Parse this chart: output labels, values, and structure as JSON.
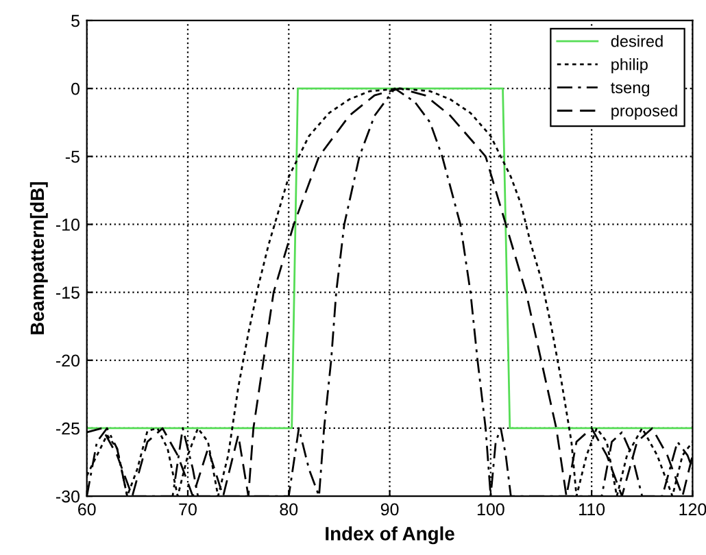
{
  "chart_data": {
    "type": "line",
    "xlabel": "Index of Angle",
    "ylabel": "Beampattern[dB]",
    "xlim": [
      60,
      120
    ],
    "ylim": [
      -30,
      5
    ],
    "xticks": [
      60,
      70,
      80,
      90,
      100,
      110,
      120
    ],
    "yticks": [
      -30,
      -25,
      -20,
      -15,
      -10,
      -5,
      0,
      5
    ],
    "grid": true,
    "legend": "top right",
    "marker": "none",
    "series": [
      {
        "name": "desired",
        "color": "#55dd55",
        "line_style": "solid",
        "x": [
          60,
          80.3,
          80.9,
          101.2,
          101.9,
          120
        ],
        "values": [
          -25,
          -25,
          0,
          0,
          -25,
          -25
        ]
      },
      {
        "name": "philip",
        "color": "#000000",
        "line_style": "dotted",
        "x": [
          60,
          61,
          62,
          63,
          64,
          65,
          66,
          67,
          68,
          69,
          70,
          71,
          72,
          73,
          74,
          75,
          76,
          77,
          78,
          79,
          80,
          82,
          84,
          86,
          88,
          91,
          94,
          96,
          98,
          100,
          102,
          103,
          104,
          105,
          106,
          107,
          108,
          108.5,
          109.5,
          110.5,
          111.5,
          112.5,
          113.5,
          115,
          116.5,
          118,
          119,
          120
        ],
        "values": [
          -28.5,
          -27,
          -25.5,
          -26.5,
          -30,
          -28,
          -25.2,
          -25,
          -26.5,
          -30,
          -27,
          -25,
          -26,
          -30,
          -27,
          -22,
          -18,
          -14.5,
          -11.5,
          -9,
          -6.5,
          -3.5,
          -1.8,
          -0.8,
          -0.2,
          0,
          -0.2,
          -0.8,
          -1.8,
          -3.5,
          -6.5,
          -8.5,
          -11.5,
          -14,
          -17.5,
          -21.5,
          -26,
          -30,
          -27,
          -25,
          -26,
          -30,
          -27,
          -25,
          -27,
          -30,
          -27,
          -26
        ]
      },
      {
        "name": "tseng",
        "color": "#000000",
        "line_style": "dashdot",
        "x": [
          60,
          61,
          62,
          63,
          64,
          68.5,
          69.5,
          70.5,
          71,
          80,
          81,
          82,
          83,
          83.5,
          84.2,
          84.7,
          85.5,
          87,
          88.5,
          90.5,
          92.5,
          94,
          95.2,
          97,
          98,
          98.7,
          99.5,
          100,
          100.5,
          101,
          101.5,
          102,
          111,
          112,
          113,
          114,
          115,
          117,
          118.5,
          119.5,
          120
        ],
        "values": [
          -30,
          -26,
          -25,
          -26.5,
          -30,
          -30,
          -25,
          -28,
          -30,
          -30,
          -25,
          -28,
          -30,
          -25,
          -20,
          -15,
          -10,
          -5,
          -2,
          0,
          -1,
          -2.5,
          -5,
          -10,
          -15,
          -20,
          -25,
          -30,
          -26,
          -25,
          -27,
          -30,
          -30,
          -26,
          -25.3,
          -27,
          -30,
          -30,
          -26,
          -27,
          -28
        ]
      },
      {
        "name": "proposed",
        "color": "#000000",
        "line_style": "dashed",
        "x": [
          60,
          61.5,
          63,
          64.5,
          66,
          67.5,
          69,
          70.5,
          72,
          73.5,
          75,
          76,
          76.5,
          77.5,
          78.5,
          80.5,
          83,
          86,
          88.5,
          91,
          93.5,
          96,
          99.5,
          101.5,
          103.5,
          105,
          106.5,
          107.5,
          108.5,
          110,
          111.5,
          113,
          114.5,
          116,
          117.5,
          119,
          120
        ],
        "values": [
          -25.3,
          -25,
          -27,
          -30,
          -26,
          -25,
          -27,
          -30,
          -26.5,
          -30,
          -25.5,
          -30,
          -25,
          -20,
          -15,
          -10,
          -5,
          -2,
          -0.5,
          0,
          -0.5,
          -2,
          -5,
          -10,
          -15,
          -20,
          -25,
          -30,
          -26,
          -25,
          -27,
          -30,
          -26,
          -25,
          -27,
          -30,
          -27
        ]
      }
    ]
  }
}
